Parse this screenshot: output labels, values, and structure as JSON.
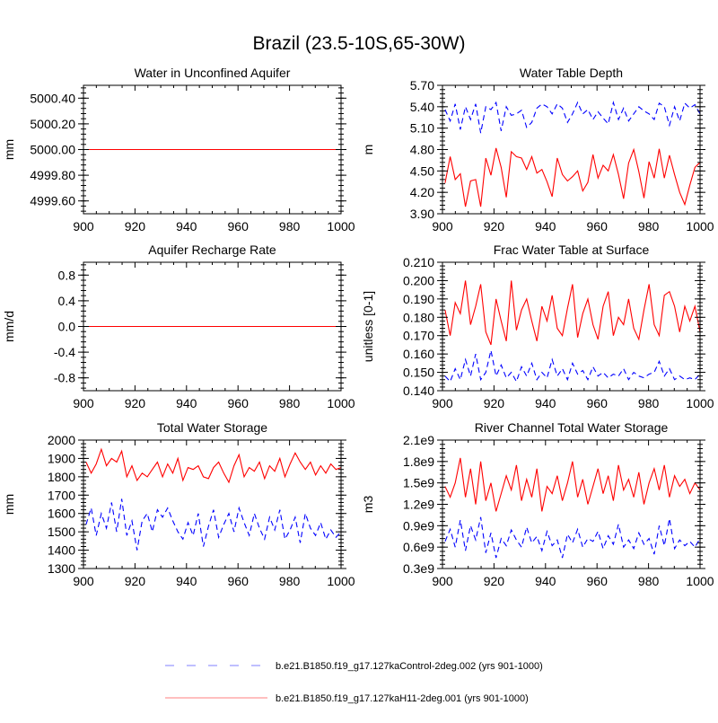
{
  "title": "Brazil (23.5-10S,65-30W)",
  "legend": {
    "entries": [
      {
        "label": "b.e21.B1850.f19_g17.127kaControl-2deg.002 (yrs 901-1000)",
        "color": "#aaaaff",
        "style": "dashed"
      },
      {
        "label": "b.e21.B1850.f19_g17.127kaH11-2deg.001 (yrs 901-1000)",
        "color": "#ffaaaa",
        "style": "solid"
      }
    ]
  },
  "chart_data": [
    {
      "type": "line",
      "title": "Water in Unconfined Aquifer",
      "ylabel": "mm",
      "xlim": [
        900,
        1000
      ],
      "xticks": [
        "900",
        "920",
        "940",
        "960",
        "980",
        "1000"
      ],
      "ylim": [
        4999.5,
        5000.5
      ],
      "yticks": [
        {
          "v": 4999.6,
          "label": "4999.60"
        },
        {
          "v": 4999.8,
          "label": "4999.80"
        },
        {
          "v": 5000.0,
          "label": "5000.00"
        },
        {
          "v": 5000.2,
          "label": "5000.20"
        },
        {
          "v": 5000.4,
          "label": "5000.40"
        }
      ],
      "x_range": [
        901,
        1000
      ],
      "series": [
        {
          "name": "Control",
          "color": "#0000ff",
          "dash": true,
          "values": [
            5000,
            5000
          ]
        },
        {
          "name": "H11",
          "color": "#ff0000",
          "dash": false,
          "values": [
            5000,
            5000
          ]
        }
      ]
    },
    {
      "type": "line",
      "title": "Water Table Depth",
      "ylabel": "m",
      "xlim": [
        900,
        1000
      ],
      "xticks": [
        "900",
        "920",
        "940",
        "960",
        "980",
        "1000"
      ],
      "ylim": [
        3.9,
        5.7
      ],
      "yticks": [
        {
          "v": 3.9,
          "label": "3.90"
        },
        {
          "v": 4.2,
          "label": "4.20"
        },
        {
          "v": 4.5,
          "label": "4.50"
        },
        {
          "v": 4.8,
          "label": "4.80"
        },
        {
          "v": 5.1,
          "label": "5.10"
        },
        {
          "v": 5.4,
          "label": "5.40"
        },
        {
          "v": 5.7,
          "label": "5.70"
        }
      ],
      "x_range": [
        901,
        1000
      ],
      "series": [
        {
          "name": "Control",
          "color": "#0000ff",
          "dash": true,
          "values": [
            5.36,
            5.2,
            5.44,
            5.08,
            5.4,
            5.22,
            5.44,
            5.03,
            5.4,
            5.36,
            5.46,
            5.06,
            5.4,
            5.28,
            5.3,
            5.35,
            5.11,
            5.18,
            5.38,
            5.44,
            5.4,
            5.3,
            5.44,
            5.38,
            5.18,
            5.3,
            5.46,
            5.3,
            5.36,
            5.22,
            5.33,
            5.24,
            5.16,
            5.46,
            5.22,
            5.38,
            5.2,
            5.3,
            5.4,
            5.34,
            5.3,
            5.22,
            5.45,
            5.4,
            5.14,
            5.4,
            5.2,
            5.45,
            5.38,
            5.43,
            5.3
          ]
        },
        {
          "name": "H11",
          "color": "#ff0000",
          "dash": false,
          "values": [
            4.33,
            4.7,
            4.38,
            4.46,
            4.0,
            4.36,
            4.38,
            4.0,
            4.68,
            4.44,
            4.82,
            4.55,
            4.13,
            4.77,
            4.7,
            4.68,
            4.52,
            4.7,
            4.47,
            4.52,
            4.35,
            4.14,
            4.68,
            4.45,
            4.36,
            4.42,
            4.5,
            4.22,
            4.34,
            4.73,
            4.4,
            4.58,
            4.5,
            4.73,
            4.45,
            4.11,
            4.61,
            4.8,
            4.49,
            4.12,
            4.63,
            4.4,
            4.81,
            4.4,
            4.72,
            4.45,
            4.2,
            4.03,
            4.3,
            4.55,
            4.62
          ]
        }
      ]
    },
    {
      "type": "line",
      "title": "Aquifer Recharge Rate",
      "ylabel": "mm/d",
      "xlim": [
        900,
        1000
      ],
      "xticks": [
        "900",
        "920",
        "940",
        "960",
        "980",
        "1000"
      ],
      "ylim": [
        -1.0,
        1.0
      ],
      "yticks": [
        {
          "v": -0.8,
          "label": "-0.8"
        },
        {
          "v": -0.4,
          "label": "-0.4"
        },
        {
          "v": 0.0,
          "label": "0.0"
        },
        {
          "v": 0.4,
          "label": "0.4"
        },
        {
          "v": 0.8,
          "label": "0.8"
        }
      ],
      "x_range": [
        901,
        1000
      ],
      "series": [
        {
          "name": "Control",
          "color": "#0000ff",
          "dash": true,
          "values": [
            0,
            0
          ]
        },
        {
          "name": "H11",
          "color": "#ff0000",
          "dash": false,
          "values": [
            0,
            0
          ]
        }
      ]
    },
    {
      "type": "line",
      "title": "Frac Water Table at Surface",
      "ylabel": "unitless [0-1]",
      "xlim": [
        900,
        1000
      ],
      "xticks": [
        "900",
        "920",
        "940",
        "960",
        "980",
        "1000"
      ],
      "ylim": [
        0.14,
        0.21
      ],
      "yticks": [
        {
          "v": 0.14,
          "label": "0.140"
        },
        {
          "v": 0.15,
          "label": "0.150"
        },
        {
          "v": 0.16,
          "label": "0.160"
        },
        {
          "v": 0.17,
          "label": "0.170"
        },
        {
          "v": 0.18,
          "label": "0.180"
        },
        {
          "v": 0.19,
          "label": "0.190"
        },
        {
          "v": 0.2,
          "label": "0.200"
        },
        {
          "v": 0.21,
          "label": "0.210"
        }
      ],
      "x_range": [
        901,
        1000
      ],
      "series": [
        {
          "name": "Control",
          "color": "#0000ff",
          "dash": true,
          "values": [
            0.148,
            0.145,
            0.152,
            0.146,
            0.157,
            0.148,
            0.16,
            0.146,
            0.15,
            0.162,
            0.148,
            0.154,
            0.147,
            0.15,
            0.145,
            0.153,
            0.148,
            0.155,
            0.146,
            0.15,
            0.147,
            0.157,
            0.148,
            0.152,
            0.146,
            0.155,
            0.149,
            0.151,
            0.146,
            0.153,
            0.148,
            0.15,
            0.147,
            0.149,
            0.148,
            0.152,
            0.146,
            0.15,
            0.148,
            0.147,
            0.149,
            0.15,
            0.156,
            0.148,
            0.152,
            0.146,
            0.148,
            0.146,
            0.147,
            0.146,
            0.149
          ]
        },
        {
          "name": "H11",
          "color": "#ff0000",
          "dash": false,
          "values": [
            0.184,
            0.17,
            0.188,
            0.182,
            0.2,
            0.176,
            0.186,
            0.198,
            0.172,
            0.165,
            0.19,
            0.178,
            0.167,
            0.2,
            0.173,
            0.184,
            0.19,
            0.178,
            0.167,
            0.186,
            0.178,
            0.192,
            0.174,
            0.17,
            0.185,
            0.198,
            0.169,
            0.182,
            0.19,
            0.176,
            0.168,
            0.186,
            0.194,
            0.17,
            0.18,
            0.176,
            0.19,
            0.174,
            0.168,
            0.184,
            0.198,
            0.176,
            0.17,
            0.192,
            0.194,
            0.186,
            0.172,
            0.186,
            0.178,
            0.186,
            0.172
          ]
        }
      ]
    },
    {
      "type": "line",
      "title": "Total Water Storage",
      "ylabel": "mm",
      "xlim": [
        900,
        1000
      ],
      "xticks": [
        "900",
        "920",
        "940",
        "960",
        "980",
        "1000"
      ],
      "ylim": [
        1300,
        2000
      ],
      "yticks": [
        {
          "v": 1300,
          "label": "1300"
        },
        {
          "v": 1400,
          "label": "1400"
        },
        {
          "v": 1500,
          "label": "1500"
        },
        {
          "v": 1600,
          "label": "1600"
        },
        {
          "v": 1700,
          "label": "1700"
        },
        {
          "v": 1800,
          "label": "1800"
        },
        {
          "v": 1900,
          "label": "1900"
        },
        {
          "v": 2000,
          "label": "2000"
        }
      ],
      "x_range": [
        901,
        1000
      ],
      "series": [
        {
          "name": "Control",
          "color": "#0000ff",
          "dash": true,
          "values": [
            1540,
            1630,
            1480,
            1600,
            1520,
            1660,
            1500,
            1680,
            1480,
            1560,
            1400,
            1560,
            1600,
            1500,
            1620,
            1580,
            1630,
            1560,
            1500,
            1460,
            1550,
            1480,
            1600,
            1420,
            1530,
            1620,
            1470,
            1540,
            1600,
            1500,
            1630,
            1550,
            1480,
            1600,
            1520,
            1460,
            1580,
            1510,
            1620,
            1460,
            1510,
            1580,
            1440,
            1600,
            1520,
            1480,
            1550,
            1460,
            1510,
            1470,
            1500
          ]
        },
        {
          "name": "H11",
          "color": "#ff0000",
          "dash": false,
          "values": [
            1880,
            1820,
            1870,
            1950,
            1860,
            1900,
            1880,
            1940,
            1800,
            1860,
            1780,
            1820,
            1800,
            1840,
            1880,
            1800,
            1870,
            1820,
            1900,
            1780,
            1850,
            1840,
            1860,
            1800,
            1790,
            1850,
            1880,
            1820,
            1770,
            1860,
            1920,
            1800,
            1850,
            1830,
            1880,
            1790,
            1860,
            1830,
            1900,
            1800,
            1870,
            1930,
            1880,
            1840,
            1880,
            1810,
            1860,
            1820,
            1870,
            1840,
            1850
          ]
        }
      ]
    },
    {
      "type": "line",
      "title": "River Channel Total Water Storage",
      "ylabel": "m3",
      "xlim": [
        900,
        1000
      ],
      "xticks": [
        "900",
        "920",
        "940",
        "960",
        "980",
        "1000"
      ],
      "ylim": [
        0.3,
        2.1
      ],
      "y_units": "1e9",
      "yticks": [
        {
          "v": 0.3,
          "label": "0.3e9"
        },
        {
          "v": 0.6,
          "label": "0.6e9"
        },
        {
          "v": 0.9,
          "label": "0.9e9"
        },
        {
          "v": 1.2,
          "label": "1.2e9"
        },
        {
          "v": 1.5,
          "label": "1.5e9"
        },
        {
          "v": 1.8,
          "label": "1.8e9"
        },
        {
          "v": 2.1,
          "label": "2.1e9"
        }
      ],
      "x_range": [
        901,
        1000
      ],
      "series": [
        {
          "name": "Control",
          "color": "#0000ff",
          "dash": true,
          "values": [
            0.68,
            0.85,
            0.6,
            0.98,
            0.55,
            0.9,
            0.7,
            1.02,
            0.52,
            0.8,
            0.45,
            0.72,
            0.62,
            0.84,
            0.7,
            0.6,
            0.88,
            0.66,
            0.75,
            0.55,
            0.82,
            0.62,
            0.7,
            0.45,
            0.78,
            0.66,
            0.85,
            0.6,
            0.72,
            0.68,
            0.82,
            0.58,
            0.76,
            0.64,
            0.92,
            0.6,
            0.7,
            0.58,
            0.8,
            0.64,
            0.72,
            0.5,
            0.9,
            0.62,
            1.0,
            0.58,
            0.7,
            0.62,
            0.68,
            0.6,
            0.72
          ]
        },
        {
          "name": "H11",
          "color": "#ff0000",
          "dash": false,
          "values": [
            1.45,
            1.3,
            1.5,
            1.85,
            1.3,
            1.7,
            1.2,
            1.8,
            1.25,
            1.5,
            1.1,
            1.35,
            1.6,
            1.4,
            1.75,
            1.25,
            1.55,
            1.3,
            1.7,
            1.1,
            1.45,
            1.35,
            1.6,
            1.25,
            1.5,
            1.8,
            1.3,
            1.55,
            1.2,
            1.45,
            1.7,
            1.35,
            1.6,
            1.25,
            1.75,
            1.4,
            1.55,
            1.3,
            1.65,
            1.2,
            1.5,
            1.7,
            1.4,
            1.75,
            1.3,
            1.6,
            1.45,
            1.55,
            1.35,
            1.5,
            1.4
          ]
        }
      ]
    }
  ]
}
